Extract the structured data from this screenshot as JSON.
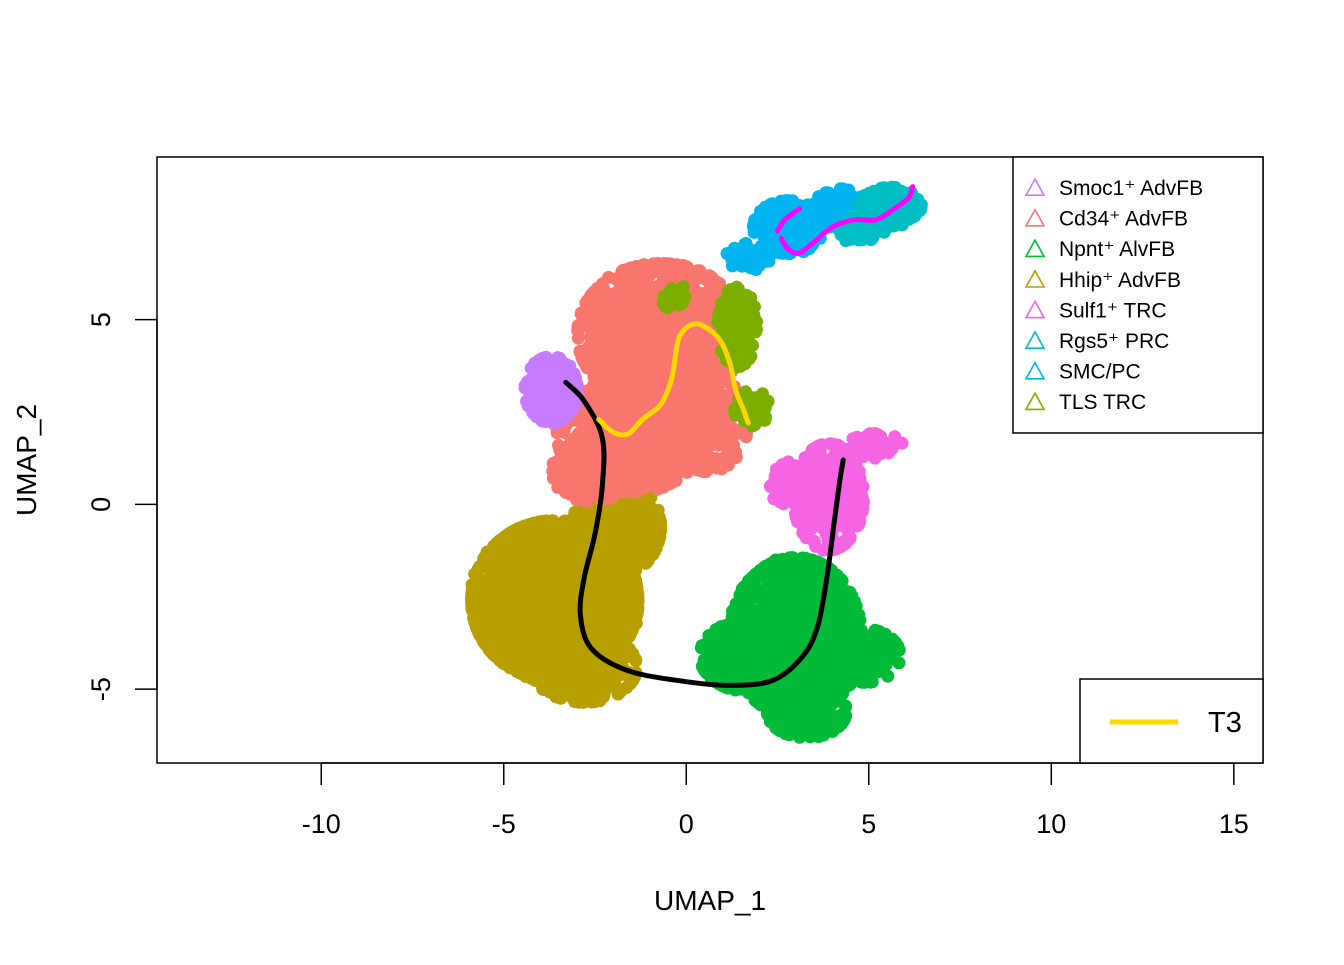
{
  "chart_data": {
    "type": "scatter",
    "title": "",
    "xlabel": "UMAP_1",
    "ylabel": "UMAP_2",
    "xlim": [
      -14.5,
      15.8
    ],
    "ylim": [
      -7.0,
      9.4
    ],
    "xticks": [
      -10,
      -5,
      0,
      5,
      10,
      15
    ],
    "yticks": [
      -5,
      0,
      5
    ],
    "xtick_labels": [
      "-10",
      "-5",
      "0",
      "5",
      "10",
      "15"
    ],
    "ytick_labels": [
      "-5",
      "0",
      "5"
    ],
    "grid": false,
    "legend": {
      "position": "top-right",
      "marker": "open-triangle",
      "entries": [
        {
          "label": "Smoc1⁺ AdvFB",
          "color": "#C77CFF"
        },
        {
          "label": "Cd34⁺ AdvFB",
          "color": "#F8766D"
        },
        {
          "label": "Npnt⁺ AlvFB",
          "color": "#00BA38"
        },
        {
          "label": "Hhip⁺ AdvFB",
          "color": "#B79F00"
        },
        {
          "label": "Sulf1⁺ TRC",
          "color": "#F564E3"
        },
        {
          "label": "Rgs5⁺ PRC",
          "color": "#00BFC4"
        },
        {
          "label": "SMC/PC",
          "color": "#00B4EF"
        },
        {
          "label": "TLS TRC",
          "color": "#7CAE00"
        }
      ]
    },
    "trajectory_legend": {
      "position": "bottom-right",
      "entries": [
        {
          "label": "T3",
          "color": "#FFD700"
        }
      ]
    },
    "clusters": [
      {
        "name": "Hhip⁺ AdvFB",
        "color": "#B79F00",
        "blobs": [
          [
            -3.6,
            -2.6,
            1.9,
            1.8,
            2200
          ],
          [
            -1.9,
            -0.6,
            1.0,
            1.1,
            700
          ],
          [
            -2.8,
            -4.4,
            1.2,
            0.8,
            400
          ]
        ]
      },
      {
        "name": "Cd34⁺ AdvFB",
        "color": "#F8766D",
        "blobs": [
          [
            -0.7,
            4.6,
            1.9,
            1.6,
            1200
          ],
          [
            -1.5,
            1.9,
            1.7,
            1.3,
            1000
          ],
          [
            -2.6,
            0.9,
            0.9,
            0.7,
            250
          ],
          [
            0.6,
            2.2,
            0.9,
            1.1,
            300
          ]
        ]
      },
      {
        "name": "Npnt⁺ AlvFB",
        "color": "#00BA38",
        "blobs": [
          [
            3.0,
            -3.6,
            1.5,
            1.8,
            1600
          ],
          [
            1.7,
            -4.1,
            1.1,
            0.8,
            400
          ],
          [
            3.3,
            -5.6,
            0.9,
            0.6,
            300
          ],
          [
            4.9,
            -4.1,
            0.8,
            0.6,
            150
          ]
        ]
      },
      {
        "name": "Sulf1⁺ TRC",
        "color": "#F564E3",
        "blobs": [
          [
            3.9,
            0.2,
            0.8,
            1.2,
            400
          ],
          [
            5.2,
            1.6,
            0.6,
            0.3,
            60
          ],
          [
            2.8,
            0.6,
            0.5,
            0.5,
            80
          ]
        ]
      },
      {
        "name": "Smoc1⁺ AdvFB",
        "color": "#C77CFF",
        "blobs": [
          [
            -3.7,
            3.1,
            0.6,
            0.75,
            350
          ]
        ]
      },
      {
        "name": "TLS TRC",
        "color": "#7CAE00",
        "blobs": [
          [
            1.4,
            4.8,
            0.45,
            0.9,
            200
          ],
          [
            1.8,
            2.6,
            0.4,
            0.4,
            80
          ],
          [
            -0.3,
            5.6,
            0.3,
            0.3,
            30
          ]
        ]
      },
      {
        "name": "SMC/PC",
        "color": "#00B4EF",
        "blobs": [
          [
            2.8,
            7.5,
            0.8,
            0.6,
            250
          ],
          [
            1.7,
            6.7,
            0.5,
            0.3,
            60
          ],
          [
            4.2,
            8.0,
            0.6,
            0.45,
            120
          ]
        ]
      },
      {
        "name": "Rgs5⁺ PRC",
        "color": "#00BFC4",
        "blobs": [
          [
            5.6,
            8.1,
            0.7,
            0.4,
            250
          ],
          [
            5.2,
            7.6,
            0.6,
            0.3,
            120
          ],
          [
            4.7,
            7.4,
            0.4,
            0.3,
            60
          ]
        ]
      }
    ],
    "trajectories": [
      {
        "color": "#000000",
        "points": [
          [
            -3.3,
            3.3
          ],
          [
            -2.8,
            2.8
          ],
          [
            -2.3,
            1.8
          ],
          [
            -2.3,
            0.5
          ],
          [
            -2.5,
            -0.8
          ],
          [
            -2.8,
            -2.0
          ],
          [
            -2.9,
            -3.0
          ],
          [
            -2.6,
            -3.9
          ],
          [
            -1.6,
            -4.5
          ],
          [
            0.0,
            -4.8
          ],
          [
            1.3,
            -4.9
          ],
          [
            2.4,
            -4.75
          ],
          [
            3.2,
            -4.1
          ],
          [
            3.6,
            -3.3
          ],
          [
            3.85,
            -2.0
          ],
          [
            4.05,
            -0.5
          ],
          [
            4.2,
            0.6
          ],
          [
            4.3,
            1.2
          ]
        ]
      },
      {
        "color": "#FFD700",
        "points": [
          [
            -2.4,
            2.3
          ],
          [
            -2.0,
            1.95
          ],
          [
            -1.6,
            1.9
          ],
          [
            -1.2,
            2.3
          ],
          [
            -0.7,
            2.7
          ],
          [
            -0.4,
            3.4
          ],
          [
            -0.2,
            4.5
          ],
          [
            0.2,
            4.88
          ],
          [
            0.6,
            4.75
          ],
          [
            0.95,
            4.4
          ],
          [
            1.2,
            3.8
          ],
          [
            1.35,
            3.1
          ],
          [
            1.55,
            2.6
          ],
          [
            1.7,
            2.2
          ]
        ]
      },
      {
        "color": "#FF00FF",
        "points": [
          [
            2.6,
            7.2
          ],
          [
            2.8,
            6.9
          ],
          [
            3.1,
            6.8
          ],
          [
            3.5,
            7.1
          ],
          [
            4.0,
            7.5
          ],
          [
            4.6,
            7.7
          ],
          [
            5.2,
            7.7
          ],
          [
            5.7,
            8.0
          ],
          [
            6.1,
            8.3
          ],
          [
            6.2,
            8.6
          ]
        ]
      },
      {
        "color": "#FF00FF",
        "points": [
          [
            2.5,
            7.4
          ],
          [
            2.7,
            7.7
          ],
          [
            3.1,
            8.0
          ]
        ]
      }
    ]
  }
}
